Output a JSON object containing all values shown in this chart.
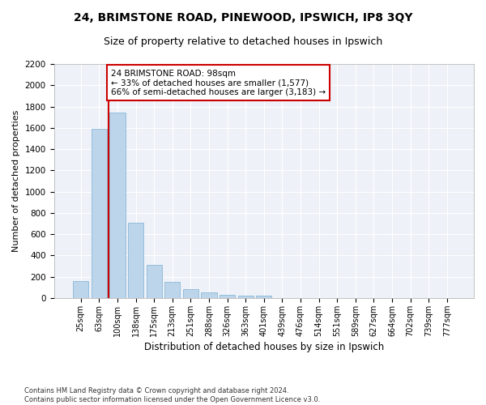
{
  "title1": "24, BRIMSTONE ROAD, PINEWOOD, IPSWICH, IP8 3QY",
  "title2": "Size of property relative to detached houses in Ipswich",
  "xlabel": "Distribution of detached houses by size in Ipswich",
  "ylabel": "Number of detached properties",
  "footnote": "Contains HM Land Registry data © Crown copyright and database right 2024.\nContains public sector information licensed under the Open Government Licence v3.0.",
  "bin_labels": [
    "25sqm",
    "63sqm",
    "100sqm",
    "138sqm",
    "175sqm",
    "213sqm",
    "251sqm",
    "288sqm",
    "326sqm",
    "363sqm",
    "401sqm",
    "439sqm",
    "476sqm",
    "514sqm",
    "551sqm",
    "589sqm",
    "627sqm",
    "664sqm",
    "702sqm",
    "739sqm",
    "777sqm"
  ],
  "bar_values": [
    160,
    1590,
    1745,
    710,
    315,
    155,
    80,
    55,
    32,
    26,
    20,
    0,
    0,
    0,
    0,
    0,
    0,
    0,
    0,
    0,
    0
  ],
  "bar_color": "#bdd5ea",
  "bar_edgecolor": "#7aafd4",
  "property_bin_index": 2,
  "vline_color": "#cc0000",
  "annotation_line1": "24 BRIMSTONE ROAD: 98sqm",
  "annotation_line2": "← 33% of detached houses are smaller (1,577)",
  "annotation_line3": "66% of semi-detached houses are larger (3,183) →",
  "annotation_box_color": "#cc0000",
  "ylim": [
    0,
    2200
  ],
  "yticks": [
    0,
    200,
    400,
    600,
    800,
    1000,
    1200,
    1400,
    1600,
    1800,
    2000,
    2200
  ],
  "background_color": "#eef2f8",
  "grid_color": "#ffffff",
  "title1_fontsize": 10,
  "title2_fontsize": 9,
  "ylabel_fontsize": 8,
  "xlabel_fontsize": 8.5,
  "tick_fontsize": 7,
  "annotation_fontsize": 7.5,
  "footnote_fontsize": 6
}
